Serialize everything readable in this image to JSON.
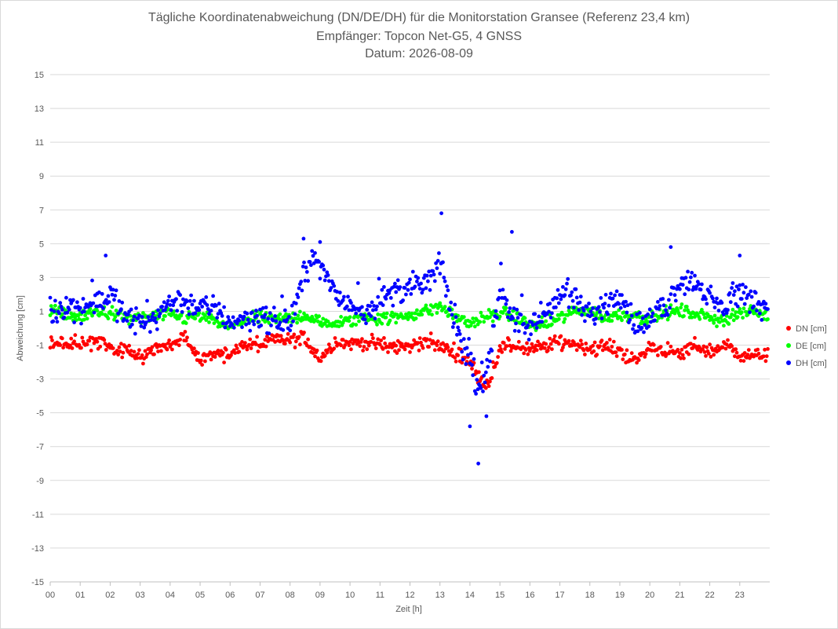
{
  "chart_data": {
    "type": "scatter",
    "title_lines": [
      "Tägliche Koordinatenabweichung (DN/DE/DH) für die Monitorstation Gransee (Referenz 23,4 km)",
      "Empfänger: Topcon Net-G5, 4 GNSS",
      "Datum: 2026-08-09"
    ],
    "xlabel": "Zeit [h]",
    "ylabel": "Abweichung [cm]",
    "xlim": [
      0,
      24
    ],
    "ylim": [
      -15,
      15
    ],
    "x_ticks": [
      "00",
      "01",
      "02",
      "03",
      "04",
      "05",
      "06",
      "07",
      "08",
      "09",
      "10",
      "11",
      "12",
      "13",
      "14",
      "15",
      "16",
      "17",
      "18",
      "19",
      "20",
      "21",
      "22",
      "23"
    ],
    "y_ticks": [
      15,
      13,
      11,
      9,
      7,
      5,
      3,
      1,
      -1,
      -3,
      -5,
      -7,
      -9,
      -11,
      -13,
      -15
    ],
    "sampling_interval_min": 2,
    "legend_position": "right",
    "series": [
      {
        "name": "DN [cm]",
        "color": "#ff0000",
        "profile_x": [
          0,
          0.5,
          1,
          1.5,
          2,
          2.5,
          3,
          3.5,
          4,
          4.5,
          5,
          5.5,
          6,
          6.5,
          7,
          7.5,
          8,
          8.5,
          9,
          9.5,
          10,
          10.5,
          11,
          11.5,
          12,
          12.5,
          13,
          13.5,
          14,
          14.3,
          14.6,
          15,
          15.5,
          16,
          16.5,
          17,
          17.5,
          18,
          18.5,
          19,
          19.5,
          20,
          20.5,
          21,
          21.5,
          22,
          22.5,
          23,
          23.5,
          24
        ],
        "profile_y": [
          -1.0,
          -0.9,
          -0.9,
          -0.8,
          -1.1,
          -1.4,
          -1.6,
          -1.3,
          -1.0,
          -0.6,
          -1.9,
          -1.5,
          -1.5,
          -1.0,
          -1.0,
          -0.7,
          -0.7,
          -0.6,
          -1.8,
          -0.8,
          -0.9,
          -0.8,
          -1.0,
          -1.1,
          -1.1,
          -0.7,
          -1.1,
          -1.4,
          -2.0,
          -3.0,
          -3.3,
          -1.2,
          -1.0,
          -1.3,
          -1.1,
          -0.8,
          -0.9,
          -1.2,
          -1.1,
          -1.3,
          -2.0,
          -1.1,
          -1.3,
          -1.6,
          -1.0,
          -1.4,
          -1.0,
          -1.5,
          -1.7,
          -1.4
        ],
        "noise_amplitude": 0.4
      },
      {
        "name": "DE [cm]",
        "color": "#00ff00",
        "profile_x": [
          0,
          0.5,
          1,
          1.5,
          2,
          2.5,
          3,
          3.5,
          4,
          4.5,
          5,
          5.5,
          6,
          6.5,
          7,
          7.5,
          8,
          8.5,
          9,
          9.5,
          10,
          10.5,
          11,
          11.5,
          12,
          12.5,
          13,
          13.5,
          14,
          14.5,
          15,
          15.5,
          16,
          16.5,
          17,
          17.5,
          18,
          18.5,
          19,
          19.5,
          20,
          20.5,
          21,
          21.5,
          22,
          22.5,
          23,
          23.5,
          24
        ],
        "profile_y": [
          1.0,
          0.9,
          0.6,
          1.0,
          0.9,
          0.6,
          0.6,
          0.7,
          0.8,
          0.6,
          0.7,
          0.4,
          0.0,
          0.5,
          0.6,
          0.5,
          0.6,
          0.8,
          0.3,
          0.3,
          0.4,
          0.7,
          0.6,
          0.6,
          0.8,
          1.0,
          1.3,
          0.7,
          0.3,
          0.6,
          0.9,
          0.7,
          0.2,
          0.2,
          0.6,
          1.0,
          1.1,
          0.6,
          0.8,
          0.8,
          0.5,
          0.9,
          1.0,
          0.9,
          0.6,
          0.5,
          0.9,
          1.0,
          0.7
        ],
        "noise_amplitude": 0.35
      },
      {
        "name": "DH [cm]",
        "color": "#0000ff",
        "profile_x": [
          0,
          0.5,
          1,
          1.5,
          2,
          2.5,
          3,
          3.5,
          4,
          4.5,
          5,
          5.5,
          6,
          6.5,
          7,
          7.5,
          8,
          8.4,
          8.7,
          9,
          9.5,
          10,
          10.5,
          11,
          11.5,
          12,
          12.5,
          13,
          13.5,
          14,
          14.3,
          14.6,
          15,
          15.5,
          16,
          16.5,
          17,
          17.5,
          18,
          18.5,
          19,
          19.5,
          20,
          20.5,
          21,
          21.5,
          22,
          22.5,
          23,
          23.5,
          24
        ],
        "profile_y": [
          0.8,
          1.4,
          1.2,
          1.5,
          2.0,
          0.6,
          0.4,
          0.6,
          1.6,
          1.6,
          1.2,
          1.2,
          0.4,
          0.5,
          0.8,
          0.3,
          0.4,
          2.6,
          4.4,
          3.6,
          2.0,
          1.4,
          1.0,
          1.6,
          2.2,
          2.4,
          2.6,
          3.8,
          0.2,
          -2.0,
          -3.6,
          -2.6,
          2.6,
          0.4,
          0.0,
          0.8,
          2.0,
          1.6,
          0.6,
          1.4,
          2.2,
          0.2,
          0.4,
          1.2,
          2.8,
          2.8,
          1.6,
          1.2,
          2.2,
          1.6,
          1.2
        ],
        "noise_amplitude": 0.7,
        "outliers": [
          {
            "x": 14.28,
            "y": -8.0
          },
          {
            "x": 13.05,
            "y": 6.8
          },
          {
            "x": 14.0,
            "y": -5.8
          },
          {
            "x": 15.4,
            "y": 5.7
          },
          {
            "x": 20.7,
            "y": 4.8
          },
          {
            "x": 1.85,
            "y": 4.3
          },
          {
            "x": 8.45,
            "y": 5.3
          },
          {
            "x": 9.0,
            "y": 5.1
          },
          {
            "x": 14.55,
            "y": -5.2
          },
          {
            "x": 23.0,
            "y": 4.3
          }
        ]
      }
    ]
  }
}
